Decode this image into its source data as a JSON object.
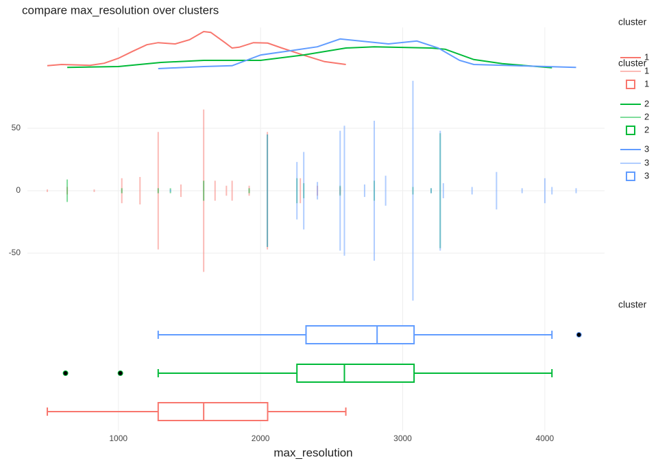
{
  "chart_data": [
    {
      "type": "line",
      "title": "compare  max_resolution over clusters",
      "xlim": [
        360,
        4420
      ],
      "ylim": [
        0,
        1
      ],
      "series": [
        {
          "name": "1",
          "color": "#F8766D",
          "x": [
            500,
            600,
            800,
            900,
            1000,
            1100,
            1200,
            1280,
            1400,
            1500,
            1600,
            1650,
            1750,
            1800,
            1850,
            1950,
            2050,
            2150,
            2300,
            2450,
            2600
          ],
          "values": [
            0.07,
            0.1,
            0.08,
            0.13,
            0.25,
            0.42,
            0.58,
            0.63,
            0.6,
            0.7,
            0.9,
            0.88,
            0.63,
            0.5,
            0.52,
            0.63,
            0.62,
            0.5,
            0.33,
            0.17,
            0.1
          ]
        },
        {
          "name": "2",
          "color": "#00BA38",
          "x": [
            640,
            1000,
            1300,
            1600,
            2000,
            2300,
            2600,
            2800,
            3200,
            3300,
            3500,
            3700,
            4050
          ],
          "values": [
            0.03,
            0.05,
            0.15,
            0.2,
            0.2,
            0.33,
            0.5,
            0.53,
            0.5,
            0.47,
            0.22,
            0.12,
            0.02
          ]
        },
        {
          "name": "3",
          "color": "#619CFF",
          "x": [
            1280,
            1600,
            1800,
            2000,
            2200,
            2400,
            2560,
            2700,
            2900,
            3100,
            3250,
            3400,
            3500,
            3800,
            4220
          ],
          "values": [
            0,
            0.05,
            0.07,
            0.33,
            0.43,
            0.53,
            0.72,
            0.67,
            0.6,
            0.67,
            0.5,
            0.2,
            0.1,
            0.07,
            0.03
          ]
        }
      ]
    },
    {
      "type": "spike",
      "xlim": [
        360,
        4420
      ],
      "ylim": [
        -95,
        95
      ],
      "yticks": [
        -50,
        0,
        50
      ],
      "grid": true,
      "series": [
        {
          "name": "1",
          "color": "#F8766D",
          "x": [
            500,
            640,
            830,
            1024,
            1152,
            1280,
            1440,
            1600,
            1680,
            1760,
            1800,
            1920,
            2048,
            2280,
            2400,
            2560
          ],
          "values": [
            1,
            3,
            1,
            10,
            11,
            47,
            5,
            65,
            8,
            4,
            8,
            4,
            47,
            10,
            4,
            3
          ]
        },
        {
          "name": "2",
          "color": "#00BA38",
          "x": [
            640,
            1024,
            1280,
            1366,
            1600,
            1920,
            2048,
            2256,
            2304,
            2560,
            2800,
            3072,
            3200,
            3264
          ],
          "values": [
            9,
            2,
            2,
            2,
            8,
            2,
            45,
            10,
            6,
            4,
            8,
            3,
            2,
            46
          ]
        },
        {
          "name": "3",
          "color": "#619CFF",
          "x": [
            1366,
            2048,
            2256,
            2304,
            2400,
            2560,
            2590,
            2732,
            2800,
            2880,
            3072,
            3200,
            3264,
            3286,
            3488,
            3660,
            3840,
            4000,
            4050,
            4220
          ],
          "values": [
            1,
            45,
            23,
            31,
            7,
            48,
            52,
            5,
            56,
            12,
            88,
            2,
            48,
            6,
            3,
            15,
            2,
            10,
            3,
            2
          ]
        }
      ]
    },
    {
      "type": "box",
      "xlim": [
        360,
        4420
      ],
      "xticks": [
        1000,
        2000,
        3000,
        4000
      ],
      "x_label": "max_resolution",
      "grid": true,
      "series": [
        {
          "name": "1",
          "color": "#F8766D",
          "min": 500,
          "q1": 1280,
          "median": 1600,
          "q3": 2050,
          "max": 2600,
          "outliers": []
        },
        {
          "name": "2",
          "color": "#00BA38",
          "min": 1280,
          "q1": 2256,
          "median": 2590,
          "q3": 3080,
          "max": 4050,
          "outliers": [
            628,
            1014
          ]
        },
        {
          "name": "3",
          "color": "#619CFF",
          "min": 1280,
          "q1": 2320,
          "median": 2820,
          "q3": 3080,
          "max": 4050,
          "outliers": [
            4240
          ]
        }
      ]
    }
  ],
  "legend_titles": [
    "cluster",
    "cluster",
    "cluster"
  ]
}
